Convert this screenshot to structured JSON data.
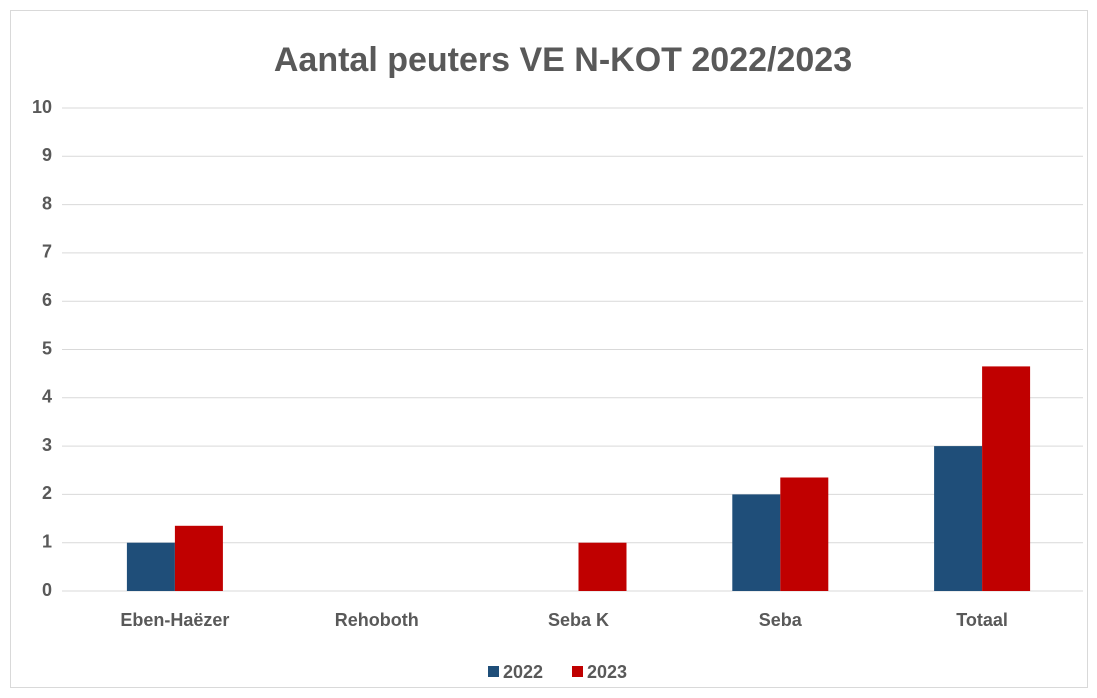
{
  "chart_data": {
    "type": "bar",
    "title": "Aantal peuters VE N-KOT 2022/2023",
    "categories": [
      "Eben-Haëzer",
      "Rehoboth",
      "Seba K",
      "Seba",
      "Totaal"
    ],
    "series": [
      {
        "name": "2022",
        "color": "#1f4e79",
        "values": [
          1,
          0,
          0,
          2,
          3
        ]
      },
      {
        "name": "2023",
        "color": "#c00000",
        "values": [
          1.35,
          0,
          1,
          2.35,
          4.65
        ]
      }
    ],
    "ylim": [
      0,
      10
    ],
    "yticks": [
      0,
      1,
      2,
      3,
      4,
      5,
      6,
      7,
      8,
      9,
      10
    ],
    "grid": true,
    "legend": "bottom"
  }
}
